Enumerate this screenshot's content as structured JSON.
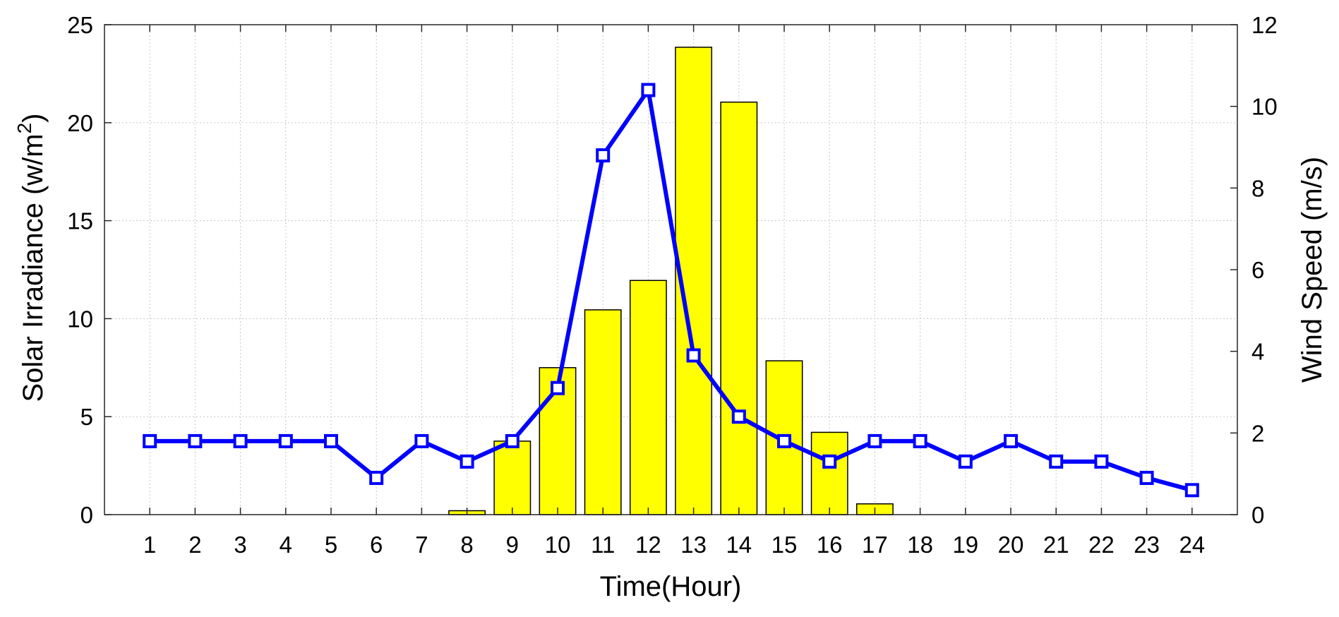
{
  "chart_data": {
    "type": "bar+line",
    "title": "",
    "xlabel": "Time(Hour)",
    "ylabel_left": "Solar Irradiance (w/m",
    "ylabel_left_sup": "2",
    "ylabel_left_close": ")",
    "ylabel_right": "Wind Speed (m/s)",
    "categories": [
      1,
      2,
      3,
      4,
      5,
      6,
      7,
      8,
      9,
      10,
      11,
      12,
      13,
      14,
      15,
      16,
      17,
      18,
      19,
      20,
      21,
      22,
      23,
      24
    ],
    "x_tick_labels": [
      "1",
      "2",
      "3",
      "4",
      "5",
      "6",
      "7",
      "8",
      "9",
      "10",
      "11",
      "12",
      "13",
      "14",
      "15",
      "16",
      "17",
      "18",
      "19",
      "20",
      "21",
      "22",
      "23",
      "24"
    ],
    "ylim_left": [
      0,
      25
    ],
    "ylim_right": [
      0,
      12
    ],
    "left_ticks": [
      "0",
      "5",
      "10",
      "15",
      "20",
      "25"
    ],
    "right_ticks": [
      "0",
      "2",
      "4",
      "6",
      "8",
      "10",
      "12"
    ],
    "grid": true,
    "series": [
      {
        "type": "bar",
        "axis": "left",
        "color": "#ffff00",
        "edge_color": "#000000",
        "values": [
          0,
          0,
          0,
          0,
          0,
          0,
          0,
          0.2,
          3.75,
          7.5,
          10.45,
          11.95,
          23.85,
          21.05,
          7.85,
          4.2,
          0.55,
          0,
          0,
          0,
          0,
          0,
          0,
          0
        ]
      },
      {
        "type": "line",
        "axis": "right",
        "color": "#0000ff",
        "marker": "square",
        "values": [
          1.8,
          1.8,
          1.8,
          1.8,
          1.8,
          0.9,
          1.8,
          1.3,
          1.8,
          3.1,
          8.8,
          10.4,
          3.9,
          2.4,
          1.8,
          1.3,
          1.8,
          1.8,
          1.3,
          1.8,
          1.3,
          1.3,
          0.9,
          0.6
        ]
      }
    ]
  }
}
